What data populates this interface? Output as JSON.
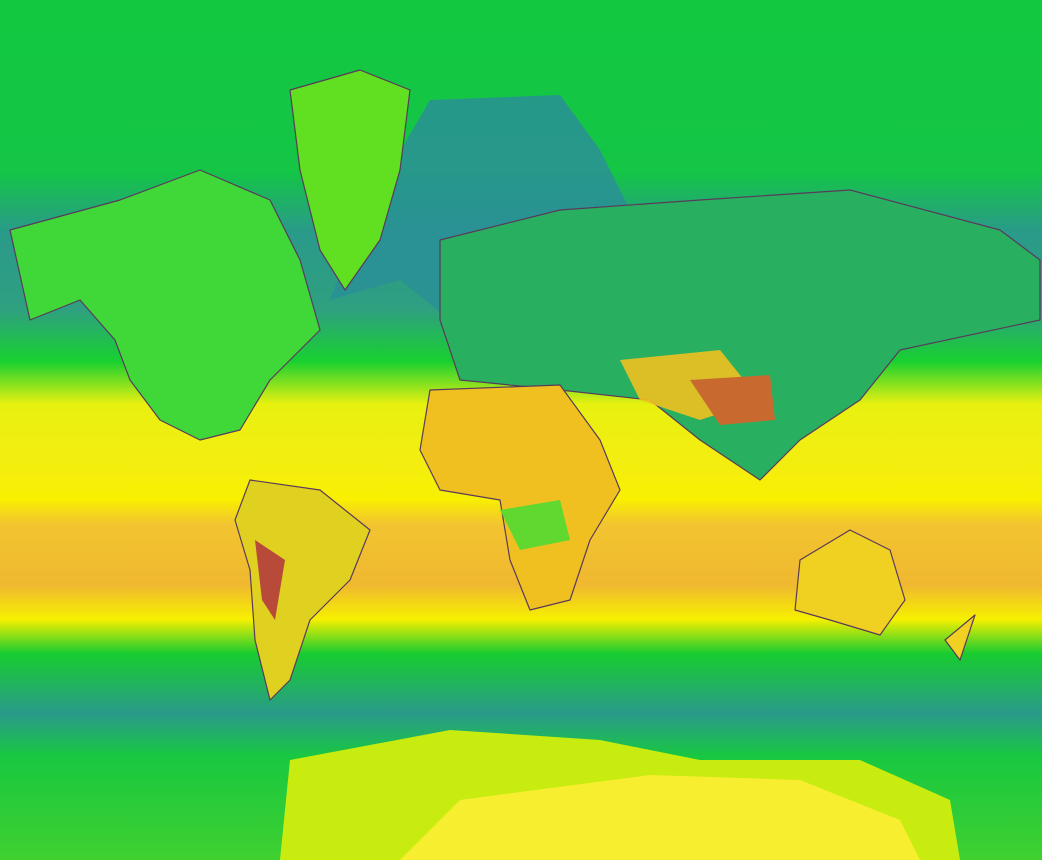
{
  "map": {
    "projection": "mercator",
    "colorscale": [
      "#2a8f96",
      "#12c840",
      "#8fe020",
      "#f2ef00",
      "#f0c020",
      "#e89a2a",
      "#c0503a"
    ],
    "boundaries_color": "#5a3a5a"
  }
}
